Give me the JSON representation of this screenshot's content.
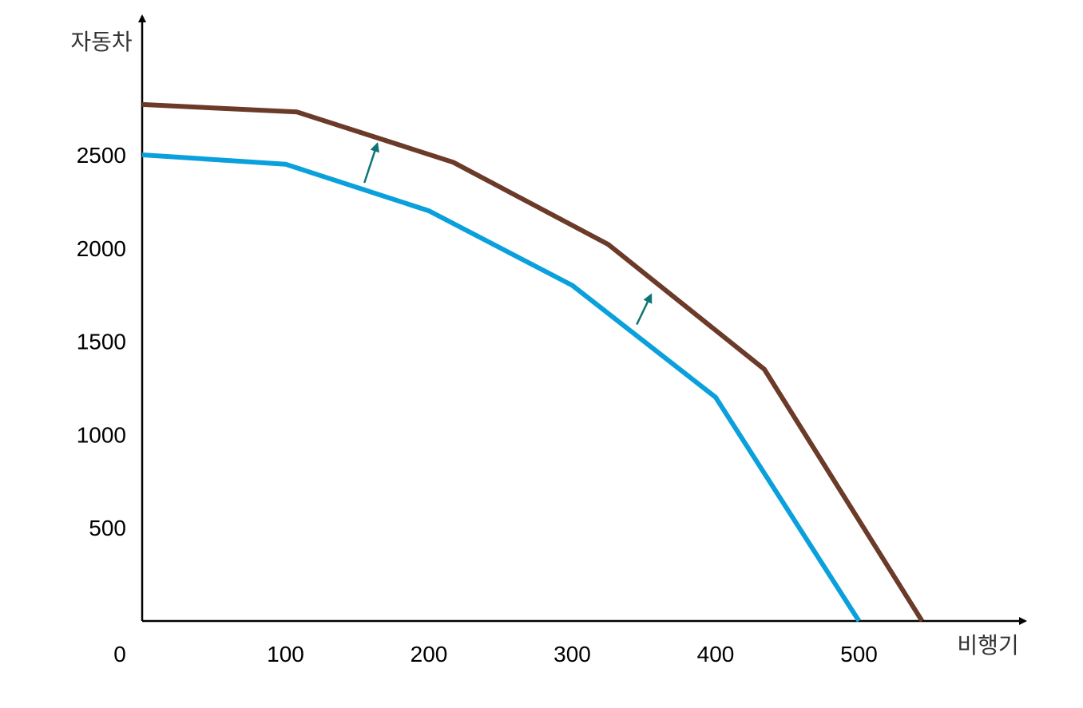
{
  "chart_data": {
    "type": "line",
    "title": "",
    "xlabel": "비행기",
    "ylabel": "자동차",
    "xlim": [
      0,
      620
    ],
    "ylim": [
      0,
      3300
    ],
    "x_ticks": [
      0,
      100,
      200,
      300,
      400,
      500
    ],
    "y_ticks": [
      500,
      1000,
      1500,
      2000,
      2500
    ],
    "grid": false,
    "legend": "none",
    "series": [
      {
        "color": "#0aa0dc",
        "points": [
          [
            0,
            2500
          ],
          [
            100,
            2450
          ],
          [
            200,
            2200
          ],
          [
            300,
            1800
          ],
          [
            400,
            1200
          ],
          [
            500,
            0
          ]
        ]
      },
      {
        "color": "#6b3a28",
        "points": [
          [
            0,
            2770
          ],
          [
            108,
            2730
          ],
          [
            217,
            2460
          ],
          [
            325,
            2020
          ],
          [
            434,
            1350
          ],
          [
            544,
            0
          ]
        ]
      }
    ],
    "annotations": [
      {
        "type": "arrow",
        "color": "#0f7474",
        "from": [
          155,
          2350
        ],
        "to": [
          164,
          2560
        ]
      },
      {
        "type": "arrow",
        "color": "#0f7474",
        "from": [
          345,
          1590
        ],
        "to": [
          355,
          1750
        ]
      }
    ]
  }
}
